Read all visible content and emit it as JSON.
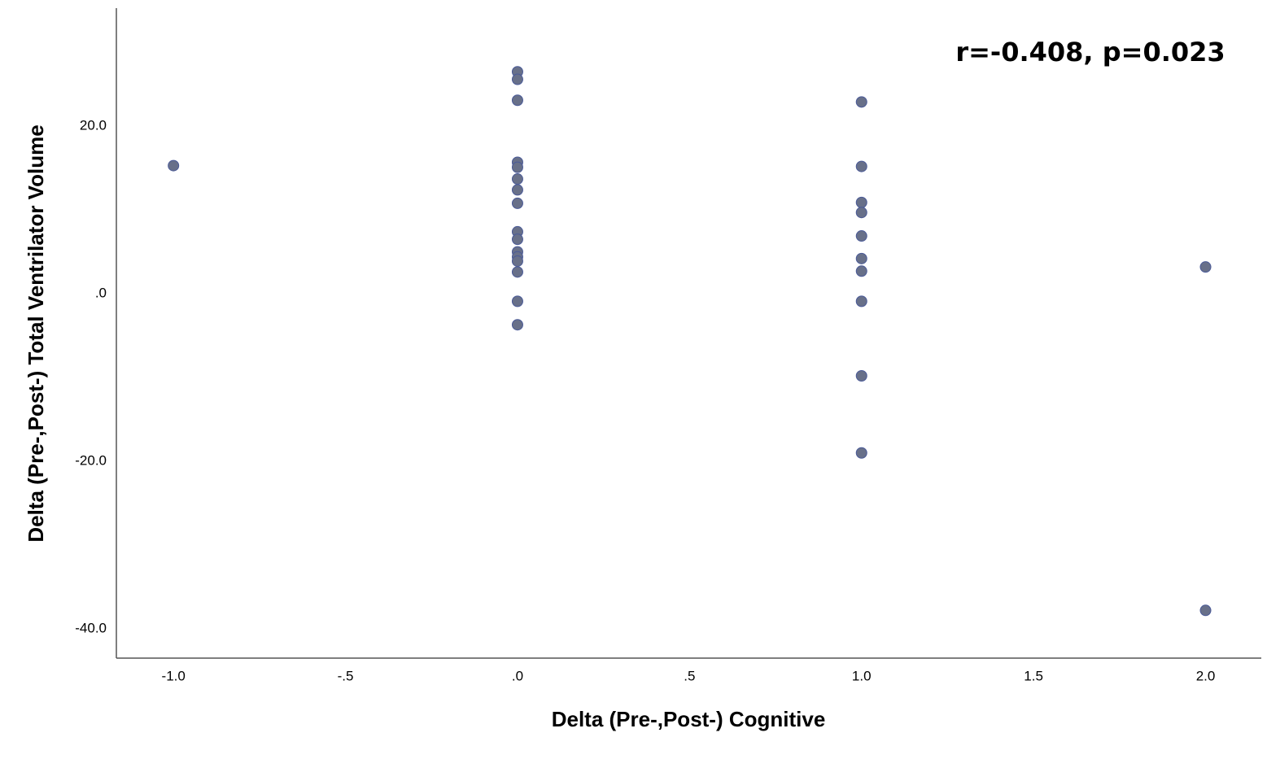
{
  "chart_data": {
    "type": "scatter",
    "x_label": "Delta (Pre-,Post-) Cognitive",
    "y_label": "Delta (Pre-,Post-) Total Ventrilator Volume",
    "annotation": "r=-0.408, p=0.023",
    "color": "#687089",
    "edge_color": "#4a5a98",
    "grid": false,
    "x": [
      -1,
      0,
      0,
      0,
      0,
      0,
      0,
      0,
      0,
      0,
      0,
      0,
      0,
      0,
      0,
      0,
      0,
      1,
      1,
      1,
      1,
      1,
      1,
      1,
      1,
      1,
      1,
      2,
      2
    ],
    "values": [
      15.3,
      26.5,
      25.6,
      23.1,
      15.7,
      15.1,
      13.7,
      12.4,
      10.8,
      7.4,
      6.5,
      5.0,
      4.4,
      3.9,
      2.6,
      -0.9,
      -3.7,
      22.9,
      15.2,
      10.9,
      9.7,
      6.9,
      4.2,
      2.7,
      -0.9,
      -9.8,
      -19.0,
      3.2,
      -37.8
    ],
    "xlim": [
      -1.166,
      2.162
    ],
    "ylim": [
      -43.5,
      34.1
    ],
    "xticks": [
      {
        "value": -1,
        "label": "-1.0"
      },
      {
        "value": -0.5,
        "label": "-.5"
      },
      {
        "value": 0,
        "label": ".0"
      },
      {
        "value": 0.5,
        "label": ".5"
      },
      {
        "value": 1,
        "label": "1.0"
      },
      {
        "value": 1.5,
        "label": "1.5"
      },
      {
        "value": 2,
        "label": "2.0"
      }
    ],
    "yticks": [
      {
        "value": 20,
        "label": "20.0"
      },
      {
        "value": 0,
        "label": ".0"
      },
      {
        "value": -20,
        "label": "-20.0"
      },
      {
        "value": -40,
        "label": "-40.0"
      }
    ]
  }
}
